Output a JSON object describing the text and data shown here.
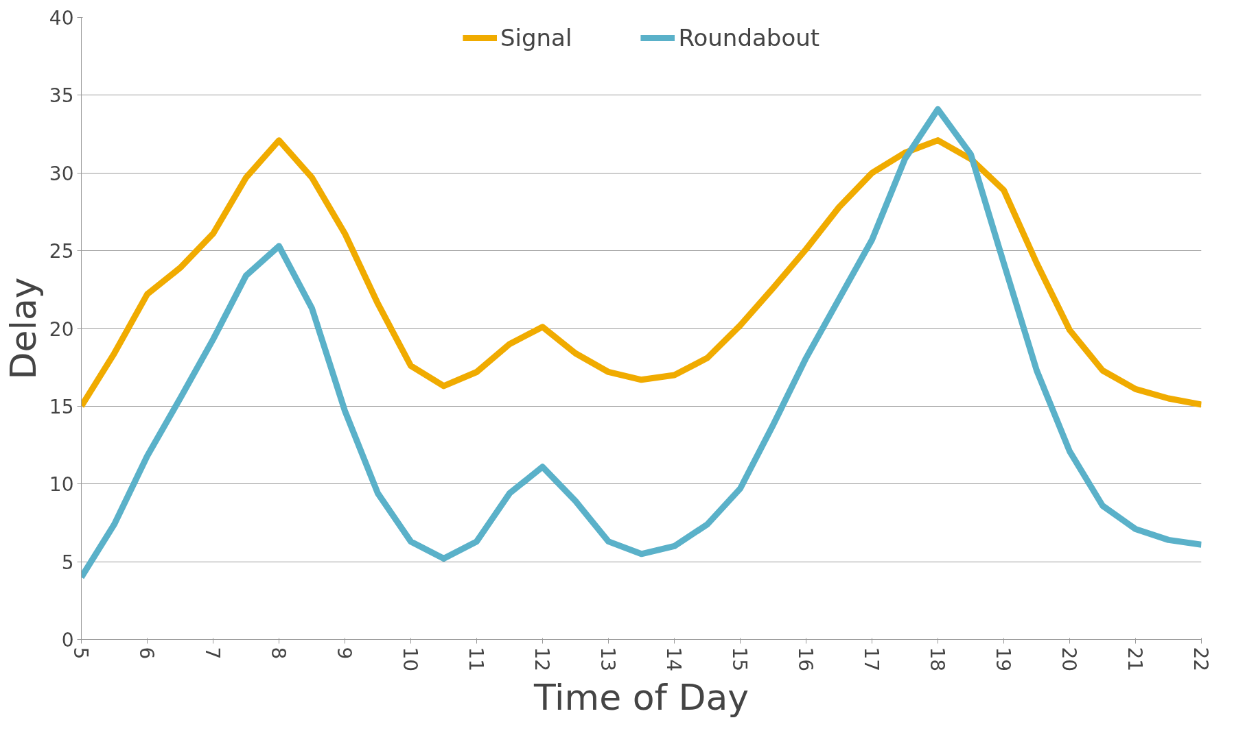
{
  "chart_data": {
    "type": "line",
    "xlabel": "Time of Day",
    "ylabel": "Delay",
    "x": [
      5,
      5.5,
      6,
      6.5,
      7,
      7.5,
      8,
      8.5,
      9,
      9.5,
      10,
      10.5,
      11,
      11.5,
      12,
      12.5,
      13,
      13.5,
      14,
      14.5,
      15,
      15.5,
      16,
      16.5,
      17,
      17.5,
      18,
      18.5,
      19,
      19.5,
      20,
      20.5,
      21,
      21.5,
      22
    ],
    "series": [
      {
        "name": "Signal",
        "color": "#f0ab00",
        "values": [
          15,
          18.4,
          22.2,
          23.9,
          26.1,
          29.7,
          32.1,
          29.7,
          26.1,
          21.6,
          17.6,
          16.3,
          17.2,
          19.0,
          20.1,
          18.4,
          17.2,
          16.7,
          17.0,
          18.1,
          20.2,
          22.6,
          25.1,
          27.8,
          30.0,
          31.3,
          32.1,
          30.9,
          28.9,
          24.2,
          19.9,
          17.3,
          16.1,
          15.5,
          15.1
        ]
      },
      {
        "name": "Roundabout",
        "color": "#5ab1c9",
        "values": [
          4,
          7.4,
          11.8,
          15.5,
          19.3,
          23.4,
          25.3,
          21.3,
          14.7,
          9.4,
          6.3,
          5.2,
          6.3,
          9.4,
          11.1,
          8.9,
          6.3,
          5.5,
          6.0,
          7.4,
          9.7,
          13.8,
          18.1,
          21.9,
          25.7,
          30.9,
          34.1,
          31.2,
          24.2,
          17.3,
          12.1,
          8.6,
          7.1,
          6.4,
          6.1
        ]
      }
    ],
    "xlim": [
      5,
      22
    ],
    "xticks": [
      5,
      6,
      7,
      8,
      9,
      10,
      11,
      12,
      13,
      14,
      15,
      16,
      17,
      18,
      19,
      20,
      21,
      22
    ],
    "ylim": [
      0,
      40
    ],
    "yticks": [
      0,
      5,
      10,
      15,
      20,
      25,
      30,
      35,
      40
    ],
    "grid": "y",
    "legend": "top",
    "marker": "none",
    "line_style": "solid"
  }
}
